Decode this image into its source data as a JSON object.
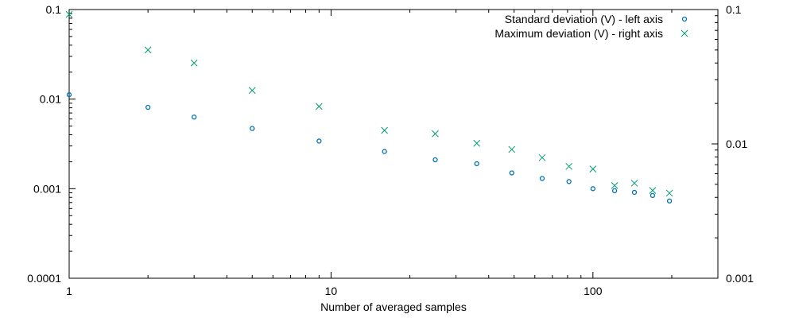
{
  "chart_data": {
    "type": "scatter",
    "title": "",
    "xlabel": "Number of averaged samples",
    "ylabel": "",
    "xscale": "log",
    "xlim": [
      1,
      300
    ],
    "ylim_left": [
      0.0001,
      0.1
    ],
    "ylim_right": [
      0.001,
      0.1
    ],
    "x_ticks": [
      "1",
      "10",
      "100"
    ],
    "y_ticks_left": [
      "0.1",
      "0.01",
      "0.001",
      "0.0001"
    ],
    "y_ticks_right": [
      "0.1",
      "0.01",
      "0.001"
    ],
    "grid": false,
    "legend_position": "top-right",
    "x": [
      1,
      2,
      3,
      5,
      9,
      16,
      25,
      36,
      49,
      64,
      81,
      100,
      121,
      144,
      169,
      196
    ],
    "series": [
      {
        "name": "Standard deviation (V) - left axis",
        "axis": "left",
        "marker": "circle",
        "color": "#0072b2",
        "values": [
          0.0112,
          0.0081,
          0.0063,
          0.0047,
          0.0034,
          0.0026,
          0.0021,
          0.0019,
          0.0015,
          0.0013,
          0.0012,
          0.001,
          0.00095,
          0.00091,
          0.00084,
          0.00073
        ]
      },
      {
        "name": "Maximum deviation (V) - right axis",
        "axis": "right",
        "marker": "x",
        "color": "#009e73",
        "values": [
          0.092,
          0.05,
          0.04,
          0.025,
          0.019,
          0.0126,
          0.0119,
          0.0101,
          0.0091,
          0.0079,
          0.0068,
          0.0065,
          0.0049,
          0.0051,
          0.0045,
          0.0043
        ]
      }
    ]
  }
}
